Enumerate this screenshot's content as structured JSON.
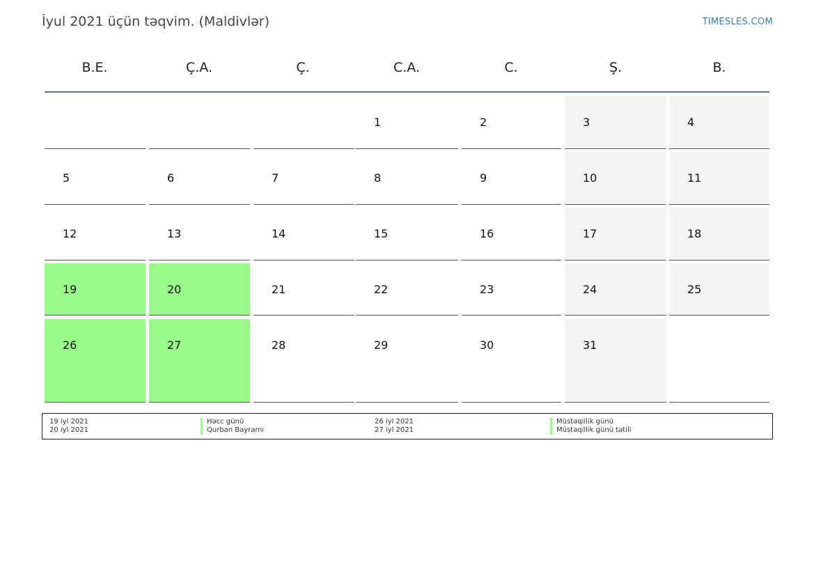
{
  "header": {
    "title": "İyul 2021 üçün təqvim. (Maldivlər)",
    "brand": "TIMESLES.COM"
  },
  "colors": {
    "holiday": "#9afa89",
    "weekend": "#f4f4f4",
    "header_rule": "#5a7596",
    "brand": "#3a7fc1"
  },
  "weekdays": [
    "B.E.",
    "Ç.A.",
    "Ç.",
    "C.A.",
    "C.",
    "Ş.",
    "B."
  ],
  "weeks": [
    [
      "",
      "",
      "",
      "1",
      "2",
      "3",
      "4"
    ],
    [
      "5",
      "6",
      "7",
      "8",
      "9",
      "10",
      "11"
    ],
    [
      "12",
      "13",
      "14",
      "15",
      "16",
      "17",
      "18"
    ],
    [
      "19",
      "20",
      "21",
      "22",
      "23",
      "24",
      "25"
    ],
    [
      "26",
      "27",
      "28",
      "29",
      "30",
      "31",
      ""
    ]
  ],
  "holidays": [
    "19",
    "20",
    "26",
    "27"
  ],
  "legend": [
    {
      "date": "19 iyl 2021",
      "name": "Həcc günü"
    },
    {
      "date": "20 iyl 2021",
      "name": "Qurban Bayramı"
    },
    {
      "date": "26 iyl 2021",
      "name": "Müstəqillik günü"
    },
    {
      "date": "27 iyl 2021",
      "name": "Müstəqillik günü tətili"
    }
  ]
}
